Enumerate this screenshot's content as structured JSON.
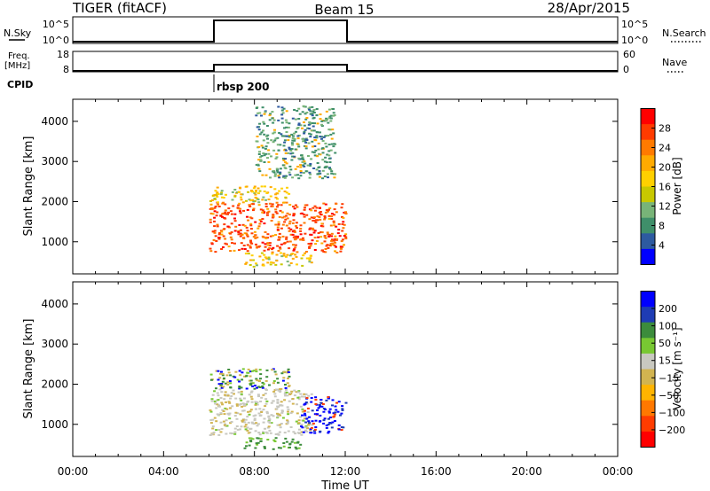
{
  "header": {
    "radar": "TIGER (fitACF)",
    "beam": "Beam 15",
    "date": "28/Apr/2015"
  },
  "strip": {
    "nsky_label": "N.Sky",
    "nsky_ticks": [
      "10^5",
      "10^0"
    ],
    "nsearch_label": "N.Search",
    "nsearch_ticks": [
      "10^5",
      "10^0"
    ],
    "freq_label_1": "Freq.",
    "freq_label_2": "[MHz]",
    "freq_ticks": [
      "18",
      "8"
    ],
    "nave_label": "Nave",
    "nave_ticks": [
      "60",
      "0"
    ],
    "cpid_label": "CPID",
    "cpid_value": "rbsp 200"
  },
  "chart_data": [
    {
      "type": "heatmap",
      "name": "power",
      "ylabel": "Slant Range [km]",
      "yticks": [
        1000,
        2000,
        3000,
        4000
      ],
      "ylim": [
        200,
        4550
      ],
      "xlim": [
        0,
        24
      ],
      "colorbar": {
        "label": "Power [dB]",
        "ticks": [
          "28",
          "24",
          "20",
          "16",
          "12",
          "8",
          "4"
        ],
        "colors": [
          "#ff0000",
          "#ff3b00",
          "#ff7a00",
          "#ffaa00",
          "#ffd000",
          "#c8c800",
          "#78b478",
          "#3f8f6a",
          "#2d5aa0",
          "#0000ff"
        ]
      },
      "coverage_hours": [
        6.0,
        12.0
      ],
      "regions": [
        {
          "t0": 6.0,
          "t1": 12.0,
          "r0": 750,
          "r1": 2000,
          "level": "high"
        },
        {
          "t0": 6.0,
          "t1": 9.5,
          "r0": 2000,
          "r1": 2400,
          "level": "mid"
        },
        {
          "t0": 7.5,
          "t1": 10.5,
          "r0": 400,
          "r1": 750,
          "level": "mid"
        },
        {
          "t0": 8.0,
          "t1": 11.5,
          "r0": 2600,
          "r1": 4400,
          "level": "low"
        }
      ]
    },
    {
      "type": "heatmap",
      "name": "velocity",
      "ylabel": "Slant Range [km]",
      "xlabel": "Time UT",
      "yticks": [
        1000,
        2000,
        3000,
        4000
      ],
      "ylim": [
        200,
        4550
      ],
      "xlim": [
        0,
        24
      ],
      "xticks": [
        "00:00",
        "04:00",
        "08:00",
        "12:00",
        "16:00",
        "20:00",
        "00:00"
      ],
      "colorbar": {
        "label": "Velocity [m s⁻¹]",
        "ticks": [
          "200",
          "100",
          "50",
          "15",
          "−15",
          "−50",
          "−100",
          "−200"
        ],
        "colors": [
          "#0000ff",
          "#1e3cb4",
          "#3c8c3c",
          "#78c832",
          "#c8c8c0",
          "#d2b450",
          "#ffb400",
          "#ff7800",
          "#ff3c00",
          "#ff0000"
        ]
      },
      "coverage_hours": [
        6.0,
        12.0
      ],
      "regions": [
        {
          "t0": 6.0,
          "t1": 10.5,
          "r0": 750,
          "r1": 1900,
          "level": "near-zero"
        },
        {
          "t0": 10.0,
          "t1": 12.0,
          "r0": 800,
          "r1": 1700,
          "level": "positive"
        },
        {
          "t0": 6.0,
          "t1": 9.5,
          "r0": 1900,
          "r1": 2400,
          "level": "mixed"
        },
        {
          "t0": 7.5,
          "t1": 10.0,
          "r0": 400,
          "r1": 700,
          "level": "small-positive"
        }
      ]
    }
  ]
}
